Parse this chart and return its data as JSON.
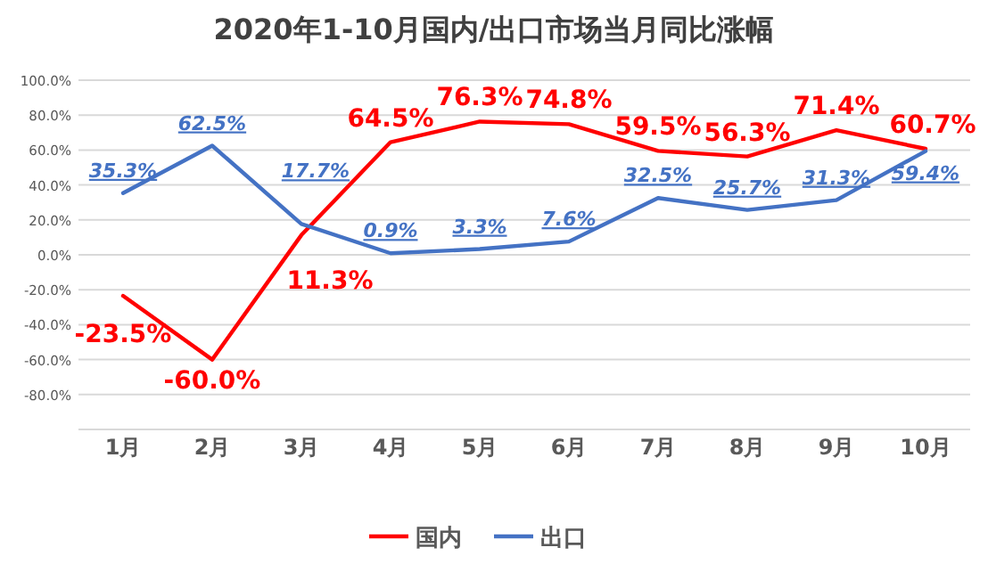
{
  "chart_data": {
    "type": "line",
    "title": "2020年1-10月国内/出口市场当月同比涨幅",
    "categories": [
      "1月",
      "2月",
      "3月",
      "4月",
      "5月",
      "6月",
      "7月",
      "8月",
      "9月",
      "10月"
    ],
    "series": [
      {
        "name": "国内",
        "color": "#ff0000",
        "values": [
          -23.5,
          -60.0,
          11.3,
          64.5,
          76.3,
          74.8,
          59.5,
          56.3,
          71.4,
          60.7
        ],
        "value_labels": [
          "-23.5%",
          "-60.0%",
          "11.3%",
          "64.5%",
          "76.3%",
          "74.8%",
          "59.5%",
          "56.3%",
          "71.4%",
          "60.7%"
        ]
      },
      {
        "name": "出口",
        "color": "#4472c4",
        "values": [
          35.3,
          62.5,
          17.7,
          0.9,
          3.3,
          7.6,
          32.5,
          25.7,
          31.3,
          59.4
        ],
        "value_labels": [
          "35.3%",
          "62.5%",
          "17.7%",
          "0.9%",
          "3.3%",
          "7.6%",
          "32.5%",
          "25.7%",
          "31.3%",
          "59.4%"
        ]
      }
    ],
    "ylim": [
      -100,
      100
    ],
    "yticks": [
      {
        "value": -100,
        "label": null
      },
      {
        "value": -80,
        "label": "-80.0%"
      },
      {
        "value": -60,
        "label": "-60.0%"
      },
      {
        "value": -40,
        "label": "-40.0%"
      },
      {
        "value": -20,
        "label": "-20.0%"
      },
      {
        "value": 0,
        "label": "0.0%"
      },
      {
        "value": 20,
        "label": "20.0%"
      },
      {
        "value": 40,
        "label": "40.0%"
      },
      {
        "value": 60,
        "label": "60.0%"
      },
      {
        "value": 80,
        "label": "80.0%"
      },
      {
        "value": 100,
        "label": "100.0%"
      }
    ],
    "grid": "y",
    "legend": "bottom",
    "marker": "none",
    "line_style": "solid"
  }
}
